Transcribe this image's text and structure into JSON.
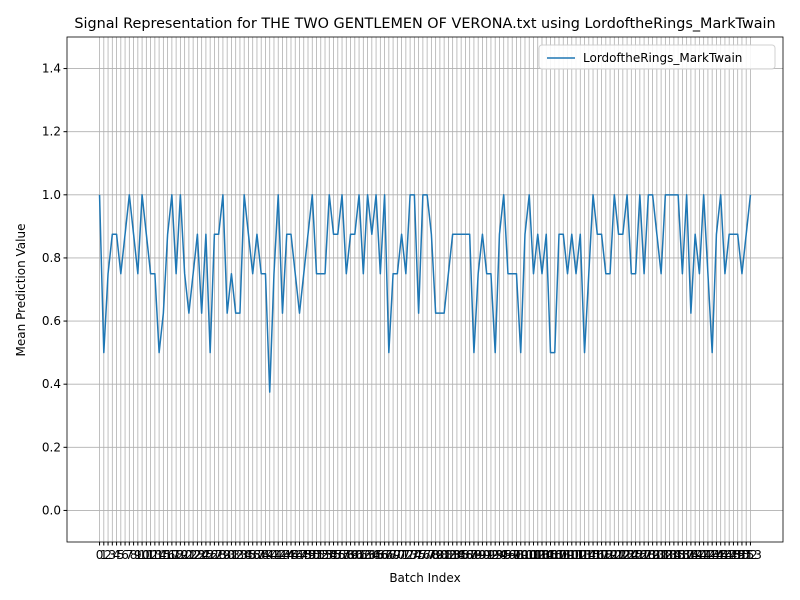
{
  "chart_data": {
    "type": "line",
    "title": "Signal Representation for THE TWO GENTLEMEN OF VERONA.txt using LordoftheRings_MarkTwain",
    "x_label": "Batch Index",
    "y_label": "Mean Prediction Value",
    "x": [
      0,
      1,
      2,
      3,
      4,
      5,
      6,
      7,
      8,
      9,
      10,
      11,
      12,
      13,
      14,
      15,
      16,
      17,
      18,
      19,
      20,
      21,
      22,
      23,
      24,
      25,
      26,
      27,
      28,
      29,
      30,
      31,
      32,
      33,
      34,
      35,
      36,
      37,
      38,
      39,
      40,
      41,
      42,
      43,
      44,
      45,
      46,
      47,
      48,
      49,
      50,
      51,
      52,
      53,
      54,
      55,
      56,
      57,
      58,
      59,
      60,
      61,
      62,
      63,
      64,
      65,
      66,
      67,
      68,
      69,
      70,
      71,
      72,
      73,
      74,
      75,
      76,
      77,
      78,
      79,
      80,
      81,
      82,
      83,
      84,
      85,
      86,
      87,
      88,
      89,
      90,
      91,
      92,
      93,
      94,
      95,
      96,
      97,
      98,
      99,
      100,
      101,
      102,
      103,
      104,
      105,
      106,
      107,
      108,
      109,
      110,
      111,
      112,
      113,
      114,
      115,
      116,
      117,
      118,
      119,
      120,
      121,
      122,
      123,
      124,
      125,
      126,
      127,
      128,
      129,
      130,
      131,
      132,
      133,
      134,
      135,
      136,
      137,
      138,
      139,
      140,
      141,
      142,
      143,
      144,
      145,
      146,
      147,
      148,
      149,
      150,
      151,
      152,
      153
    ],
    "series": [
      {
        "name": "LordoftheRings_MarkTwain",
        "color": "#1f77b4",
        "values": [
          1,
          0.5,
          0.75,
          0.875,
          0.875,
          0.75,
          0.875,
          1,
          0.875,
          0.75,
          1,
          0.875,
          0.75,
          0.75,
          0.5,
          0.625,
          0.875,
          1,
          0.75,
          1,
          0.75,
          0.625,
          0.75,
          0.875,
          0.625,
          0.875,
          0.5,
          0.875,
          0.875,
          1,
          0.625,
          0.75,
          0.625,
          0.625,
          1,
          0.875,
          0.75,
          0.875,
          0.75,
          0.75,
          0.375,
          0.75,
          1,
          0.625,
          0.875,
          0.875,
          0.75,
          0.625,
          0.75,
          0.875,
          1,
          0.75,
          0.75,
          0.75,
          1,
          0.875,
          0.875,
          1,
          0.75,
          0.875,
          0.875,
          1,
          0.75,
          1,
          0.875,
          1,
          0.75,
          1,
          0.5,
          0.75,
          0.75,
          0.875,
          0.75,
          1,
          1,
          0.625,
          1,
          1,
          0.875,
          0.625,
          0.625,
          0.625,
          0.75,
          0.875,
          0.875,
          0.875,
          0.875,
          0.875,
          0.5,
          0.75,
          0.875,
          0.75,
          0.75,
          0.5,
          0.875,
          1,
          0.75,
          0.75,
          0.75,
          0.5,
          0.875,
          1,
          0.75,
          0.875,
          0.75,
          0.875,
          0.5,
          0.5,
          0.875,
          0.875,
          0.75,
          0.875,
          0.75,
          0.875,
          0.5,
          0.75,
          1,
          0.875,
          0.875,
          0.75,
          0.75,
          1,
          0.875,
          0.875,
          1,
          0.75,
          0.75,
          1,
          0.75,
          1,
          1,
          0.875,
          0.75,
          1,
          1,
          1,
          1,
          0.75,
          1,
          0.625,
          0.875,
          0.75,
          1,
          0.75,
          0.5,
          0.875,
          1,
          0.75,
          0.875,
          0.875,
          0.875,
          0.75,
          0.875,
          1
        ]
      }
    ],
    "xlim": [
      -7.65,
      160.65
    ],
    "xticks": [
      0,
      1,
      2,
      3,
      4,
      5,
      6,
      7,
      8,
      9,
      10,
      11,
      12,
      13,
      14,
      15,
      16,
      17,
      18,
      19,
      20,
      21,
      22,
      23,
      24,
      25,
      26,
      27,
      28,
      29,
      30,
      31,
      32,
      33,
      34,
      35,
      36,
      37,
      38,
      39,
      40,
      41,
      42,
      43,
      44,
      45,
      46,
      47,
      48,
      49,
      50,
      51,
      52,
      53,
      54,
      55,
      56,
      57,
      58,
      59,
      60,
      61,
      62,
      63,
      64,
      65,
      66,
      67,
      68,
      69,
      70,
      71,
      72,
      73,
      74,
      75,
      76,
      77,
      78,
      79,
      80,
      81,
      82,
      83,
      84,
      85,
      86,
      87,
      88,
      89,
      90,
      91,
      92,
      93,
      94,
      95,
      96,
      97,
      98,
      99,
      100,
      101,
      102,
      103,
      104,
      105,
      106,
      107,
      108,
      109,
      110,
      111,
      112,
      113,
      114,
      115,
      116,
      117,
      118,
      119,
      120,
      121,
      122,
      123,
      124,
      125,
      126,
      127,
      128,
      129,
      130,
      131,
      132,
      133,
      134,
      135,
      136,
      137,
      138,
      139,
      140,
      141,
      142,
      143,
      144,
      145,
      146,
      147,
      148,
      149,
      150,
      151,
      152,
      153
    ],
    "ylim": [
      -0.1,
      1.5
    ],
    "yticks": [
      {
        "value": 0,
        "label": "0.0"
      },
      {
        "value": 0.2,
        "label": "0.2"
      },
      {
        "value": 0.4,
        "label": "0.4"
      },
      {
        "value": 0.6,
        "label": "0.6"
      },
      {
        "value": 0.8,
        "label": "0.8"
      },
      {
        "value": 1,
        "label": "1.0"
      },
      {
        "value": 1.2,
        "label": "1.2"
      },
      {
        "value": 1.4,
        "label": "1.4"
      }
    ],
    "grid": true,
    "legend": "upper right"
  }
}
